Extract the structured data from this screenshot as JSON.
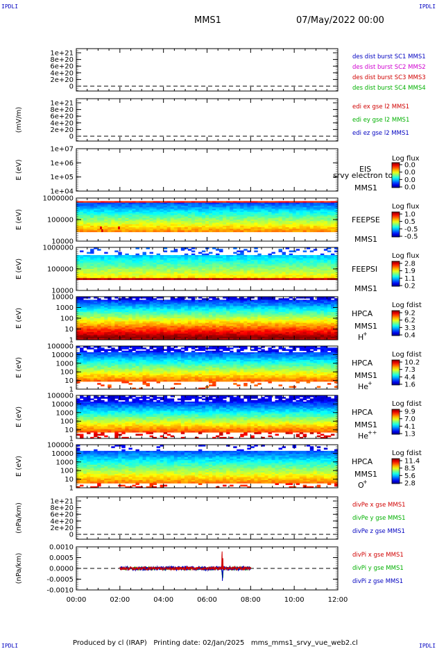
{
  "corners": {
    "tl": "IPDLI",
    "tr": "IPDLI",
    "bl": "IPDLI",
    "br": "IPDLI"
  },
  "header": {
    "title": "MMS1",
    "date": "07/May/2022 00:00"
  },
  "footer": {
    "text": "Produced by cl (IRAP)   Printing date: 02/Jan/2025   mms_mms1_srvy_vue_web2.cl"
  },
  "chart_data": {
    "type": "stacked-timeseries",
    "x_ticks": [
      "00:00",
      "02:00",
      "04:00",
      "06:00",
      "08:00",
      "10:00",
      "12:00"
    ],
    "xlim_hours": [
      0,
      12
    ],
    "panels": [
      {
        "id": "p1",
        "kind": "line",
        "ylabel": "",
        "ticks": [
          "1e+21",
          "8e+20",
          "6e+20",
          "4e+20",
          "2e+20",
          "0"
        ],
        "dashed_zero": true,
        "legend": [
          {
            "text": "des dist burst SC1 MMS1",
            "color": "#0000c0"
          },
          {
            "text": "des dist burst SC2 MMS2",
            "color": "#d000d0"
          },
          {
            "text": "des dist burst SC3 MMS3",
            "color": "#d00000"
          },
          {
            "text": "des dist burst SC4 MMS4",
            "color": "#00b000"
          }
        ]
      },
      {
        "id": "p2",
        "kind": "line",
        "ylabel": "(mV/m)",
        "ticks": [
          "1e+21",
          "8e+20",
          "6e+20",
          "4e+20",
          "2e+20",
          "0"
        ],
        "dashed_zero": true,
        "legend": [
          {
            "text": "edi ex gse l2 MMS1",
            "color": "#d00000"
          },
          {
            "text": "edi ey gse l2 MMS1",
            "color": "#00b000"
          },
          {
            "text": "edi ez gse l2 MMS1",
            "color": "#0000c0"
          }
        ]
      },
      {
        "id": "p3",
        "kind": "spectro",
        "ylabel": "E (eV)",
        "ticks": [
          "1e+07",
          "1e+06",
          "1e+05",
          "1e+04"
        ],
        "empty": true,
        "labels": [
          "EIS",
          "MMS1"
        ],
        "overlay": "srvy electron to",
        "cb_title": "Log flux",
        "cb_ticks": [
          "0.0",
          "0.0",
          "0.0",
          "0.0"
        ]
      },
      {
        "id": "p4",
        "kind": "spectro",
        "ylabel": "E (eV)",
        "ticks": [
          "1000000",
          "100000",
          "10000"
        ],
        "labels": [
          "FEEPSE",
          "MMS1"
        ],
        "cb_title": "Log flux",
        "cb_ticks": [
          "1.0",
          "0.5",
          "-0.5",
          "-0.5"
        ]
      },
      {
        "id": "p5",
        "kind": "spectro",
        "ylabel": "E (eV)",
        "ticks": [
          "1000000",
          "100000",
          "10000"
        ],
        "labels": [
          "FEEPSI",
          "MMS1"
        ],
        "cb_title": "Log flux",
        "cb_ticks": [
          "2.8",
          "1.9",
          "1.1",
          "0.2"
        ]
      },
      {
        "id": "p6",
        "kind": "spectro",
        "ylabel": "E (eV)",
        "ticks": [
          "10000",
          "1000",
          "100",
          "10",
          "1"
        ],
        "labels": [
          "HPCA",
          "MMS1",
          "H",
          "+"
        ],
        "cb_title": "Log fdist",
        "cb_ticks": [
          "9.2",
          "6.2",
          "3.3",
          "0.4"
        ]
      },
      {
        "id": "p7",
        "kind": "spectro",
        "ylabel": "E (eV)",
        "ticks": [
          "100000",
          "10000",
          "1000",
          "100",
          "10",
          "1"
        ],
        "labels": [
          "HPCA",
          "MMS1",
          "He",
          "+"
        ],
        "cb_title": "Log fdist",
        "cb_ticks": [
          "10.2",
          "7.3",
          "4.4",
          "1.6"
        ]
      },
      {
        "id": "p8",
        "kind": "spectro",
        "ylabel": "E (eV)",
        "ticks": [
          "100000",
          "10000",
          "1000",
          "100",
          "10",
          "1"
        ],
        "labels": [
          "HPCA",
          "MMS1",
          "He",
          "++"
        ],
        "cb_title": "Log fdist",
        "cb_ticks": [
          "9.9",
          "7.0",
          "4.1",
          "1.3"
        ]
      },
      {
        "id": "p9",
        "kind": "spectro",
        "ylabel": "E (eV)",
        "ticks": [
          "100000",
          "10000",
          "1000",
          "100",
          "10",
          "1"
        ],
        "labels": [
          "HPCA",
          "MMS1",
          "O",
          "+"
        ],
        "cb_title": "Log fdist",
        "cb_ticks": [
          "11.4",
          "8.5",
          "5.6",
          "2.8"
        ]
      },
      {
        "id": "p10",
        "kind": "line",
        "ylabel": "(nPa/km)",
        "ticks": [
          "1e+21",
          "8e+20",
          "6e+20",
          "4e+20",
          "2e+20",
          "0"
        ],
        "dashed_zero": true,
        "legend": [
          {
            "text": "divPe x gse MMS1",
            "color": "#d00000"
          },
          {
            "text": "divPe y gse MMS1",
            "color": "#00b000"
          },
          {
            "text": "divPe z gse MMS1",
            "color": "#0000c0"
          }
        ]
      },
      {
        "id": "p11",
        "kind": "line",
        "ylabel": "(nPa/km)",
        "ticks": [
          "0.0010",
          "0.0005",
          "0.0000",
          "-0.0005",
          "-0.0010"
        ],
        "dashed_zero": true,
        "ylim": [
          -0.0013,
          0.0013
        ],
        "data_range_hours": [
          2.0,
          8.0
        ],
        "legend": [
          {
            "text": "divPi x gse MMS1",
            "color": "#d00000"
          },
          {
            "text": "divPi y gse MMS1",
            "color": "#00b000"
          },
          {
            "text": "divPi z gse MMS1",
            "color": "#0000c0"
          }
        ]
      }
    ]
  }
}
